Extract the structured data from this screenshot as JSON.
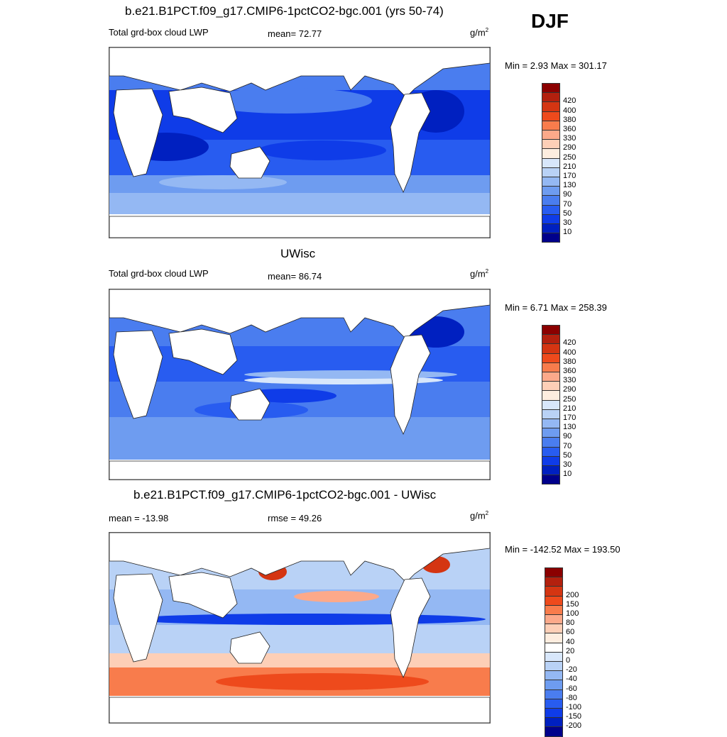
{
  "season": "DJF",
  "units_base": "g/m",
  "units_exp": "2",
  "panels": [
    {
      "title": "b.e21.B1PCT.f09_g17.CMIP6-1pctCO2-bgc.001 (yrs 50-74)",
      "left_label": "Total grd-box cloud LWP",
      "mid_label": "mean=  72.77",
      "minmax": "Min =   2.93 Max = 301.17",
      "colorbar": {
        "colors": [
          "#8b0000",
          "#b3200e",
          "#d43512",
          "#ee4a1c",
          "#f87c4c",
          "#fca98a",
          "#fdcfb7",
          "#fdeddf",
          "#d8e7fb",
          "#b9d2f6",
          "#94b8f3",
          "#6e9cf0",
          "#4a7def",
          "#285cf0",
          "#0f3ce8",
          "#0020c0",
          "#00008b"
        ],
        "labels": [
          "420",
          "400",
          "380",
          "360",
          "330",
          "290",
          "250",
          "210",
          "170",
          "130",
          "90",
          "70",
          "50",
          "30",
          "10"
        ]
      }
    },
    {
      "title": "UWisc",
      "left_label": "Total grd-box cloud LWP",
      "mid_label": "mean=  86.74",
      "minmax": "Min =   6.71 Max = 258.39",
      "colorbar": {
        "colors": [
          "#8b0000",
          "#b3200e",
          "#d43512",
          "#ee4a1c",
          "#f87c4c",
          "#fca98a",
          "#fdcfb7",
          "#fdeddf",
          "#d8e7fb",
          "#b9d2f6",
          "#94b8f3",
          "#6e9cf0",
          "#4a7def",
          "#285cf0",
          "#0f3ce8",
          "#0020c0",
          "#00008b"
        ],
        "labels": [
          "420",
          "400",
          "380",
          "360",
          "330",
          "290",
          "250",
          "210",
          "170",
          "130",
          "90",
          "70",
          "50",
          "30",
          "10"
        ]
      }
    },
    {
      "title": "b.e21.B1PCT.f09_g17.CMIP6-1pctCO2-bgc.001 - UWisc",
      "left_label": "mean = -13.98",
      "mid_label": "rmse =  49.26",
      "minmax": "Min = -142.52 Max = 193.50",
      "colorbar": {
        "colors": [
          "#8b0000",
          "#b3200e",
          "#d43512",
          "#ee4a1c",
          "#f87c4c",
          "#fca98a",
          "#fdcfb7",
          "#fdeddf",
          "#ffffff",
          "#d8e7fb",
          "#b9d2f6",
          "#94b8f3",
          "#6e9cf0",
          "#4a7def",
          "#285cf0",
          "#0f3ce8",
          "#0020c0",
          "#00008b"
        ],
        "labels": [
          "200",
          "150",
          "100",
          "80",
          "60",
          "40",
          "20",
          "0",
          "-20",
          "-40",
          "-60",
          "-80",
          "-100",
          "-150",
          "-200"
        ]
      }
    }
  ]
}
